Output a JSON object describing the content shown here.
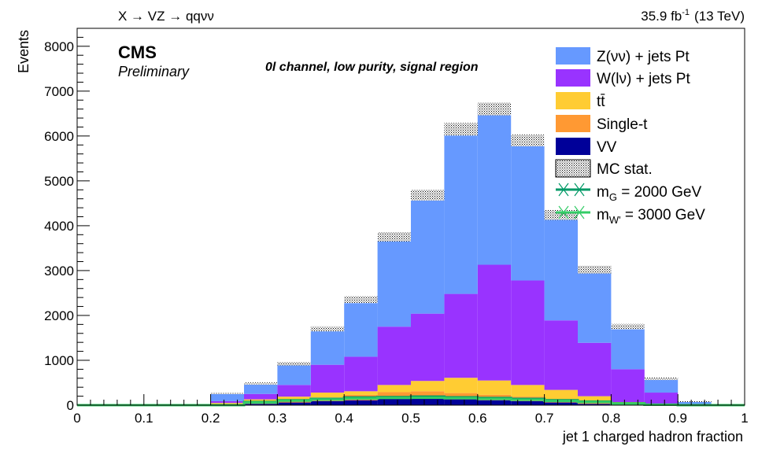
{
  "header": {
    "left": "X → VZ → qqνν",
    "lumi": "35.9 fb",
    "lumi_sup": "-1",
    "energy": "(13 TeV)"
  },
  "cms": {
    "label": "CMS",
    "sublabel": "Preliminary"
  },
  "channel_label": "0l channel, low purity, signal region",
  "chart_data": {
    "type": "bar",
    "stacked": true,
    "xlabel": "jet 1 charged hadron fraction",
    "ylabel": "Events",
    "xlim": [
      0,
      1
    ],
    "ylim": [
      0,
      8400
    ],
    "bin_edges": [
      0,
      0.05,
      0.1,
      0.15,
      0.2,
      0.25,
      0.3,
      0.35,
      0.4,
      0.45,
      0.5,
      0.55,
      0.6,
      0.65,
      0.7,
      0.75,
      0.8,
      0.85,
      0.9,
      0.95,
      1.0
    ],
    "x_ticks": [
      "0",
      "0.1",
      "0.2",
      "0.3",
      "0.4",
      "0.5",
      "0.6",
      "0.7",
      "0.8",
      "0.9",
      "1"
    ],
    "y_ticks": [
      "0",
      "1000",
      "2000",
      "3000",
      "4000",
      "5000",
      "6000",
      "7000",
      "8000"
    ],
    "series": [
      {
        "name": "VV",
        "color": "#000099",
        "values": [
          0,
          0,
          0,
          0,
          10,
          30,
          60,
          90,
          110,
          140,
          150,
          130,
          110,
          90,
          60,
          30,
          10,
          5,
          0,
          0
        ]
      },
      {
        "name": "Single-t",
        "color": "#ff9933",
        "values": [
          0,
          0,
          0,
          0,
          15,
          40,
          60,
          80,
          120,
          150,
          160,
          140,
          120,
          100,
          70,
          40,
          20,
          5,
          0,
          0
        ]
      },
      {
        "name": "tt̄",
        "color": "#ffcc33",
        "values": [
          0,
          0,
          0,
          0,
          25,
          60,
          70,
          110,
          80,
          160,
          230,
          340,
          320,
          260,
          210,
          130,
          40,
          10,
          0,
          0
        ]
      },
      {
        "name": "W(lν) + jets Pt",
        "color": "#9933ff",
        "values": [
          0,
          0,
          0,
          0,
          40,
          120,
          260,
          620,
          770,
          1300,
          1500,
          1870,
          2580,
          2330,
          1550,
          1190,
          730,
          260,
          20,
          0
        ]
      },
      {
        "name": "Z(νν) + jets Pt",
        "color": "#6699ff",
        "values": [
          0,
          0,
          0,
          0,
          170,
          230,
          470,
          800,
          1270,
          2000,
          2640,
          3670,
          3470,
          3120,
          2350,
          1630,
          950,
          310,
          60,
          10
        ]
      }
    ],
    "mc_stat_uncertainty": [
      0,
      0,
      0,
      0,
      15,
      25,
      35,
      55,
      75,
      100,
      120,
      140,
      140,
      130,
      110,
      85,
      60,
      30,
      10,
      5
    ],
    "signals": [
      {
        "name": "m_G = 2000 GeV",
        "color": "#009966",
        "values": [
          0,
          0,
          0,
          0,
          0,
          70,
          110,
          140,
          170,
          180,
          190,
          175,
          160,
          140,
          110,
          80,
          40,
          10,
          0,
          0
        ]
      },
      {
        "name": "m_W' = 3000 GeV",
        "color": "#33cc66",
        "values": [
          0,
          0,
          0,
          0,
          0,
          60,
          100,
          125,
          150,
          160,
          165,
          155,
          140,
          120,
          95,
          70,
          35,
          8,
          0,
          0
        ]
      }
    ],
    "legend": {
      "placement": "top-right",
      "entries": [
        {
          "key": "zvv",
          "label": "Z(νν) + jets Pt"
        },
        {
          "key": "wlv",
          "label": "W(lν) + jets Pt"
        },
        {
          "key": "tt",
          "label": "tt̄"
        },
        {
          "key": "st",
          "label": "Single-t"
        },
        {
          "key": "vv",
          "label": "VV"
        },
        {
          "key": "mcstat",
          "label": "MC stat."
        },
        {
          "key": "mg",
          "label_main": "m",
          "label_sub": "G",
          "label_rest": " = 2000 GeV"
        },
        {
          "key": "mw",
          "label_main": "m",
          "label_sub": "W'",
          "label_rest": " = 3000 GeV"
        }
      ]
    }
  }
}
